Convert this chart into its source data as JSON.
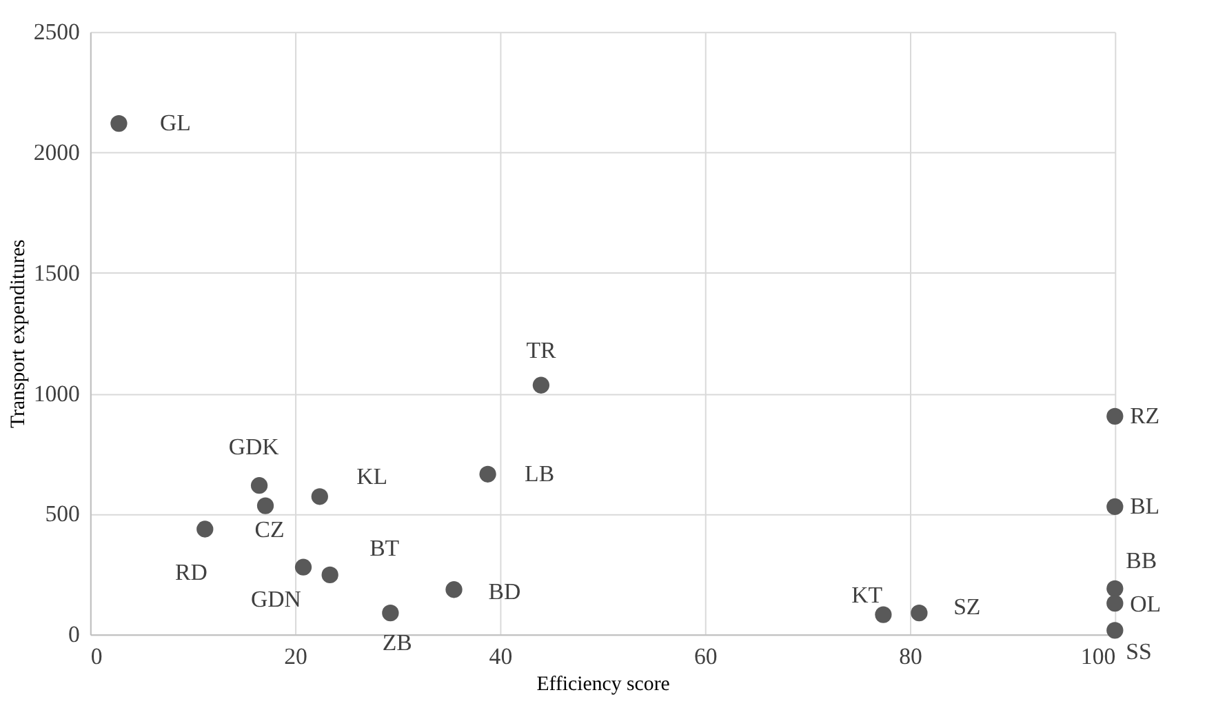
{
  "chart_data": {
    "type": "scatter",
    "xlabel": "Efficiency score",
    "ylabel": "Transport expenditures",
    "x": [
      2.8,
      44.0,
      100,
      100,
      100,
      100,
      100,
      38.8,
      16.5,
      17.1,
      22.4,
      11.2,
      20.8,
      23.4,
      29.3,
      35.5,
      77.4,
      80.9
    ],
    "series": [
      {
        "color": "#595959",
        "values": [
          2120,
          1034,
          905,
          530,
          190,
          129,
          17,
          665,
          618,
          534,
          572,
          437,
          279,
          247,
          89,
          186,
          82,
          89
        ]
      }
    ],
    "annotations": [
      {
        "text": "GL",
        "x": 2.8,
        "y": 2120
      },
      {
        "text": "TR",
        "x": 44.0,
        "y": 1034
      },
      {
        "text": "RZ",
        "x": 100,
        "y": 905
      },
      {
        "text": "BL",
        "x": 100,
        "y": 530
      },
      {
        "text": "BB",
        "x": 100,
        "y": 190
      },
      {
        "text": "OL",
        "x": 100,
        "y": 129
      },
      {
        "text": "SS",
        "x": 100,
        "y": 17
      },
      {
        "text": "LB",
        "x": 38.8,
        "y": 665
      },
      {
        "text": "GDK",
        "x": 16.5,
        "y": 618
      },
      {
        "text": "CZ",
        "x": 17.1,
        "y": 534
      },
      {
        "text": "KL",
        "x": 22.4,
        "y": 572
      },
      {
        "text": "RD",
        "x": 11.2,
        "y": 437
      },
      {
        "text": "GDN",
        "x": 20.8,
        "y": 279
      },
      {
        "text": "BT",
        "x": 23.4,
        "y": 247
      },
      {
        "text": "ZB",
        "x": 29.3,
        "y": 89
      },
      {
        "text": "BD",
        "x": 35.5,
        "y": 186
      },
      {
        "text": "KT",
        "x": 77.4,
        "y": 82
      },
      {
        "text": "SZ",
        "x": 80.9,
        "y": 89
      }
    ],
    "xlim": [
      0,
      100
    ],
    "xticks": [
      0,
      20,
      40,
      60,
      80,
      100
    ],
    "ylim": [
      0,
      2500
    ],
    "yticks": [
      0,
      500,
      1000,
      1500,
      2000,
      2500
    ],
    "grid": true,
    "marker": "circle",
    "legend": false
  }
}
